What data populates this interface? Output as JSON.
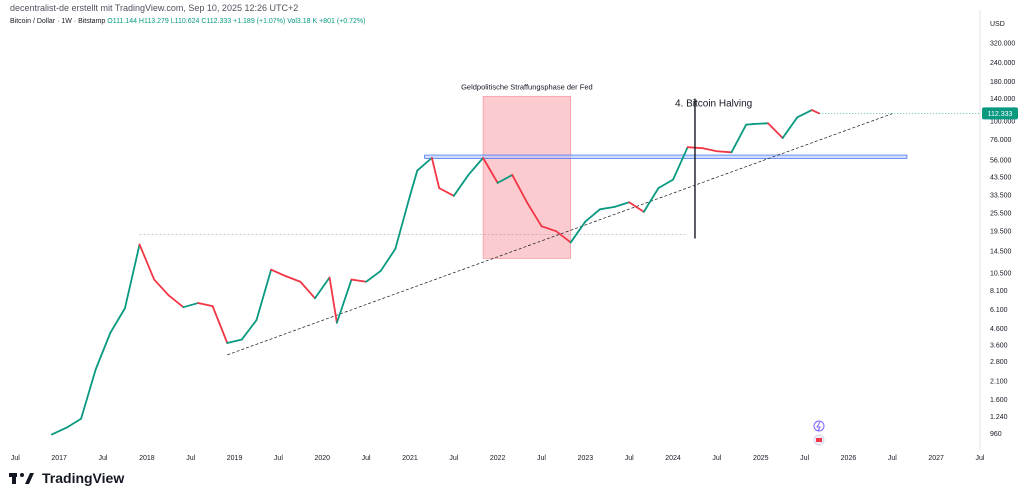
{
  "attribution": "decentralist-de erstellt mit TradingView.com, Sep 10, 2025 12:26 UTC+2",
  "legend": {
    "symbol": "Bitcoin / Dollar · 1W · Bitstamp",
    "ohlc": "O111.144 H113.279 L110.624 C112.333 +1.189 (+1.07%) Vol3.18 K +801 (+0.72%)"
  },
  "footer": {
    "brand": "TradingView"
  },
  "chart_data": {
    "type": "line",
    "title": "",
    "currency_label": "USD",
    "y_scale": "log",
    "ylim": [
      800,
      400000
    ],
    "xlim": [
      "2016-06",
      "2027-07"
    ],
    "grid": false,
    "last_price": 112333,
    "last_price_label": "112.333",
    "colors": {
      "up": "#089981",
      "down": "#f23645",
      "last_price_bg": "#089981",
      "zone": "#f7a1a8",
      "support_line": "#3b6df0"
    },
    "y_tick_labels": [
      "320.000",
      "240.000",
      "180.000",
      "140.000",
      "100.000",
      "76.000",
      "56.000",
      "43.500",
      "33.500",
      "25.500",
      "19.500",
      "14.500",
      "10.500",
      "8.100",
      "6.100",
      "4.600",
      "3.600",
      "2.800",
      "2.100",
      "1.600",
      "1.240",
      "960"
    ],
    "y_tick_values": [
      320000,
      240000,
      180000,
      140000,
      100000,
      76000,
      56000,
      43500,
      33500,
      25500,
      19500,
      14500,
      10500,
      8100,
      6100,
      4600,
      3600,
      2800,
      2100,
      1600,
      1240,
      960
    ],
    "x_tick_labels": [
      "Jul",
      "2017",
      "Jul",
      "2018",
      "Jul",
      "2019",
      "Jul",
      "2020",
      "Jul",
      "2021",
      "Jul",
      "2022",
      "Jul",
      "2023",
      "Jul",
      "2024",
      "Jul",
      "2025",
      "Jul",
      "2026",
      "Jul",
      "2027",
      "Jul"
    ],
    "x_tick_dates": [
      "2016-07",
      "2017-01",
      "2017-07",
      "2018-01",
      "2018-07",
      "2019-01",
      "2019-07",
      "2020-01",
      "2020-07",
      "2021-01",
      "2021-07",
      "2022-01",
      "2022-07",
      "2023-01",
      "2023-07",
      "2024-01",
      "2024-07",
      "2025-01",
      "2025-07",
      "2026-01",
      "2026-07",
      "2027-01",
      "2027-07"
    ],
    "series": [
      {
        "x": [
          "2016-12",
          "2017-02",
          "2017-04",
          "2017-06",
          "2017-08",
          "2017-10",
          "2017-12",
          "2018-02",
          "2018-04",
          "2018-06",
          "2018-08",
          "2018-10",
          "2018-12",
          "2019-02",
          "2019-04",
          "2019-06",
          "2019-08",
          "2019-10",
          "2019-12",
          "2020-02",
          "2020-03",
          "2020-05",
          "2020-07",
          "2020-09",
          "2020-11",
          "2021-01",
          "2021-02",
          "2021-04",
          "2021-05",
          "2021-07",
          "2021-09",
          "2021-11",
          "2022-01",
          "2022-03",
          "2022-05",
          "2022-07",
          "2022-09",
          "2022-11",
          "2023-01",
          "2023-03",
          "2023-05",
          "2023-07",
          "2023-09",
          "2023-11",
          "2024-01",
          "2024-03",
          "2024-05",
          "2024-07",
          "2024-09",
          "2024-11",
          "2024-12",
          "2025-02",
          "2025-04",
          "2025-06",
          "2025-08",
          "2025-09"
        ],
        "y": [
          950,
          1050,
          1200,
          2500,
          4300,
          6200,
          16000,
          9500,
          7500,
          6300,
          6700,
          6400,
          3700,
          3900,
          5200,
          11000,
          10000,
          9200,
          7200,
          9800,
          5000,
          9500,
          9200,
          10800,
          15000,
          33000,
          48000,
          58000,
          37000,
          33000,
          45000,
          58000,
          40000,
          45000,
          30000,
          21000,
          19500,
          16500,
          22500,
          27000,
          28000,
          30000,
          26000,
          37000,
          42000,
          68000,
          67000,
          64000,
          63000,
          95000,
          96000,
          97000,
          78000,
          106000,
          118000,
          112333
        ]
      }
    ],
    "annotations": [
      {
        "text": "Geldpolitische Straffungsphase der Fed",
        "type": "zone",
        "x_start": "2021-11",
        "x_end": "2022-11",
        "y_low": 13000,
        "y_high": 145000
      },
      {
        "text": "4. Bitcoin Halving",
        "type": "vline",
        "x": "2024-04",
        "y_low": 17500,
        "y_high": 140000
      },
      {
        "type": "trendline",
        "from_x": "2018-12",
        "from_y": 3100,
        "to_x": "2026-07",
        "to_y": 112000
      },
      {
        "type": "support_band",
        "from_x": "2021-03",
        "to_x": "2026-09",
        "y_low": 57500,
        "y_high": 60500
      },
      {
        "type": "hline",
        "from_x": "2017-12",
        "to_x": "2024-03",
        "y": 18500
      }
    ]
  }
}
